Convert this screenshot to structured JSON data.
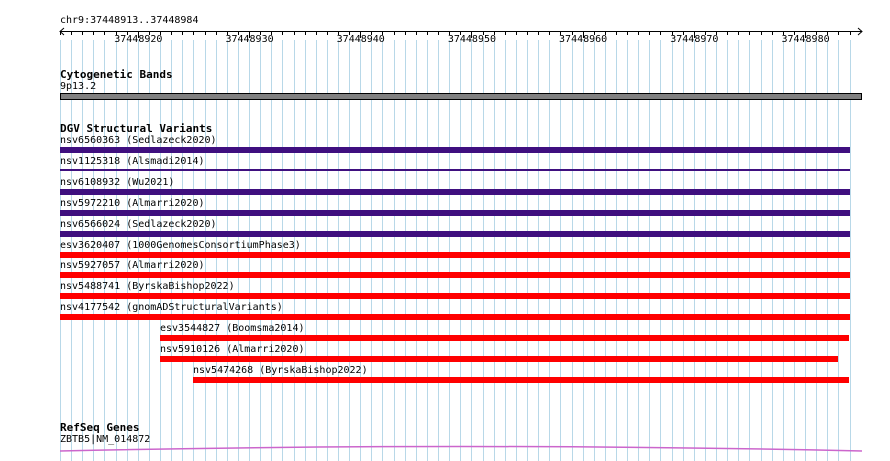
{
  "browser": {
    "locus": "chr9:37448913..37448984",
    "ruler_start": 37448913,
    "ruler_end": 37448984,
    "tick_labels": [
      "37448920",
      "37448930",
      "37448940",
      "37448950",
      "37448960",
      "37448970",
      "37448980"
    ],
    "tick_positions": [
      37448920,
      37448930,
      37448940,
      37448950,
      37448960,
      37448970,
      37448980
    ]
  },
  "tracks": {
    "cytoband": {
      "title": "Cytogenetic Bands",
      "band_label": "9p13.2",
      "color": "#808080"
    },
    "dgv": {
      "title": "DGV Structural Variants",
      "colors": {
        "loss": "#ff0000",
        "gain": "#3f0f7f",
        "thin": "#3f0f7f"
      },
      "features": [
        {
          "label": "nsv6560363 (Sedlazeck2020)",
          "style": "gain",
          "start": 37448913,
          "end": 37448984
        },
        {
          "label": "nsv1125318 (Alsmadi2014)",
          "style": "thin",
          "start": 37448913,
          "end": 37448984
        },
        {
          "label": "nsv6108932 (Wu2021)",
          "style": "gain",
          "start": 37448913,
          "end": 37448984
        },
        {
          "label": "nsv5972210 (Almarri2020)",
          "style": "gain",
          "start": 37448913,
          "end": 37448984
        },
        {
          "label": "nsv6566024 (Sedlazeck2020)",
          "style": "gain",
          "start": 37448913,
          "end": 37448984
        },
        {
          "label": "esv3620407 (1000GenomesConsortiumPhase3)",
          "style": "loss",
          "start": 37448913,
          "end": 37448984
        },
        {
          "label": "nsv5927057 (Almarri2020)",
          "style": "loss",
          "start": 37448913,
          "end": 37448984
        },
        {
          "label": "nsv5488741 (ByrskaBishop2022)",
          "style": "loss",
          "start": 37448913,
          "end": 37448984
        },
        {
          "label": "nsv4177542 (gnomADStructuralVariants)",
          "style": "loss",
          "start": 37448913,
          "end": 37448984
        },
        {
          "label": "esv3544827 (Boomsma2014)",
          "style": "loss",
          "start": 37448922,
          "end": 37448984
        },
        {
          "label": "nsv5910126 (Almarri2020)",
          "style": "loss",
          "start": 37448922,
          "end": 37448983
        },
        {
          "label": "nsv5474268 (ByrskaBishop2022)",
          "style": "loss",
          "start": 37448925,
          "end": 37448984
        }
      ]
    },
    "refseq": {
      "title": "RefSeq Genes",
      "gene_label": "ZBTB5|NM_014872",
      "color": "#cc66cc"
    }
  }
}
